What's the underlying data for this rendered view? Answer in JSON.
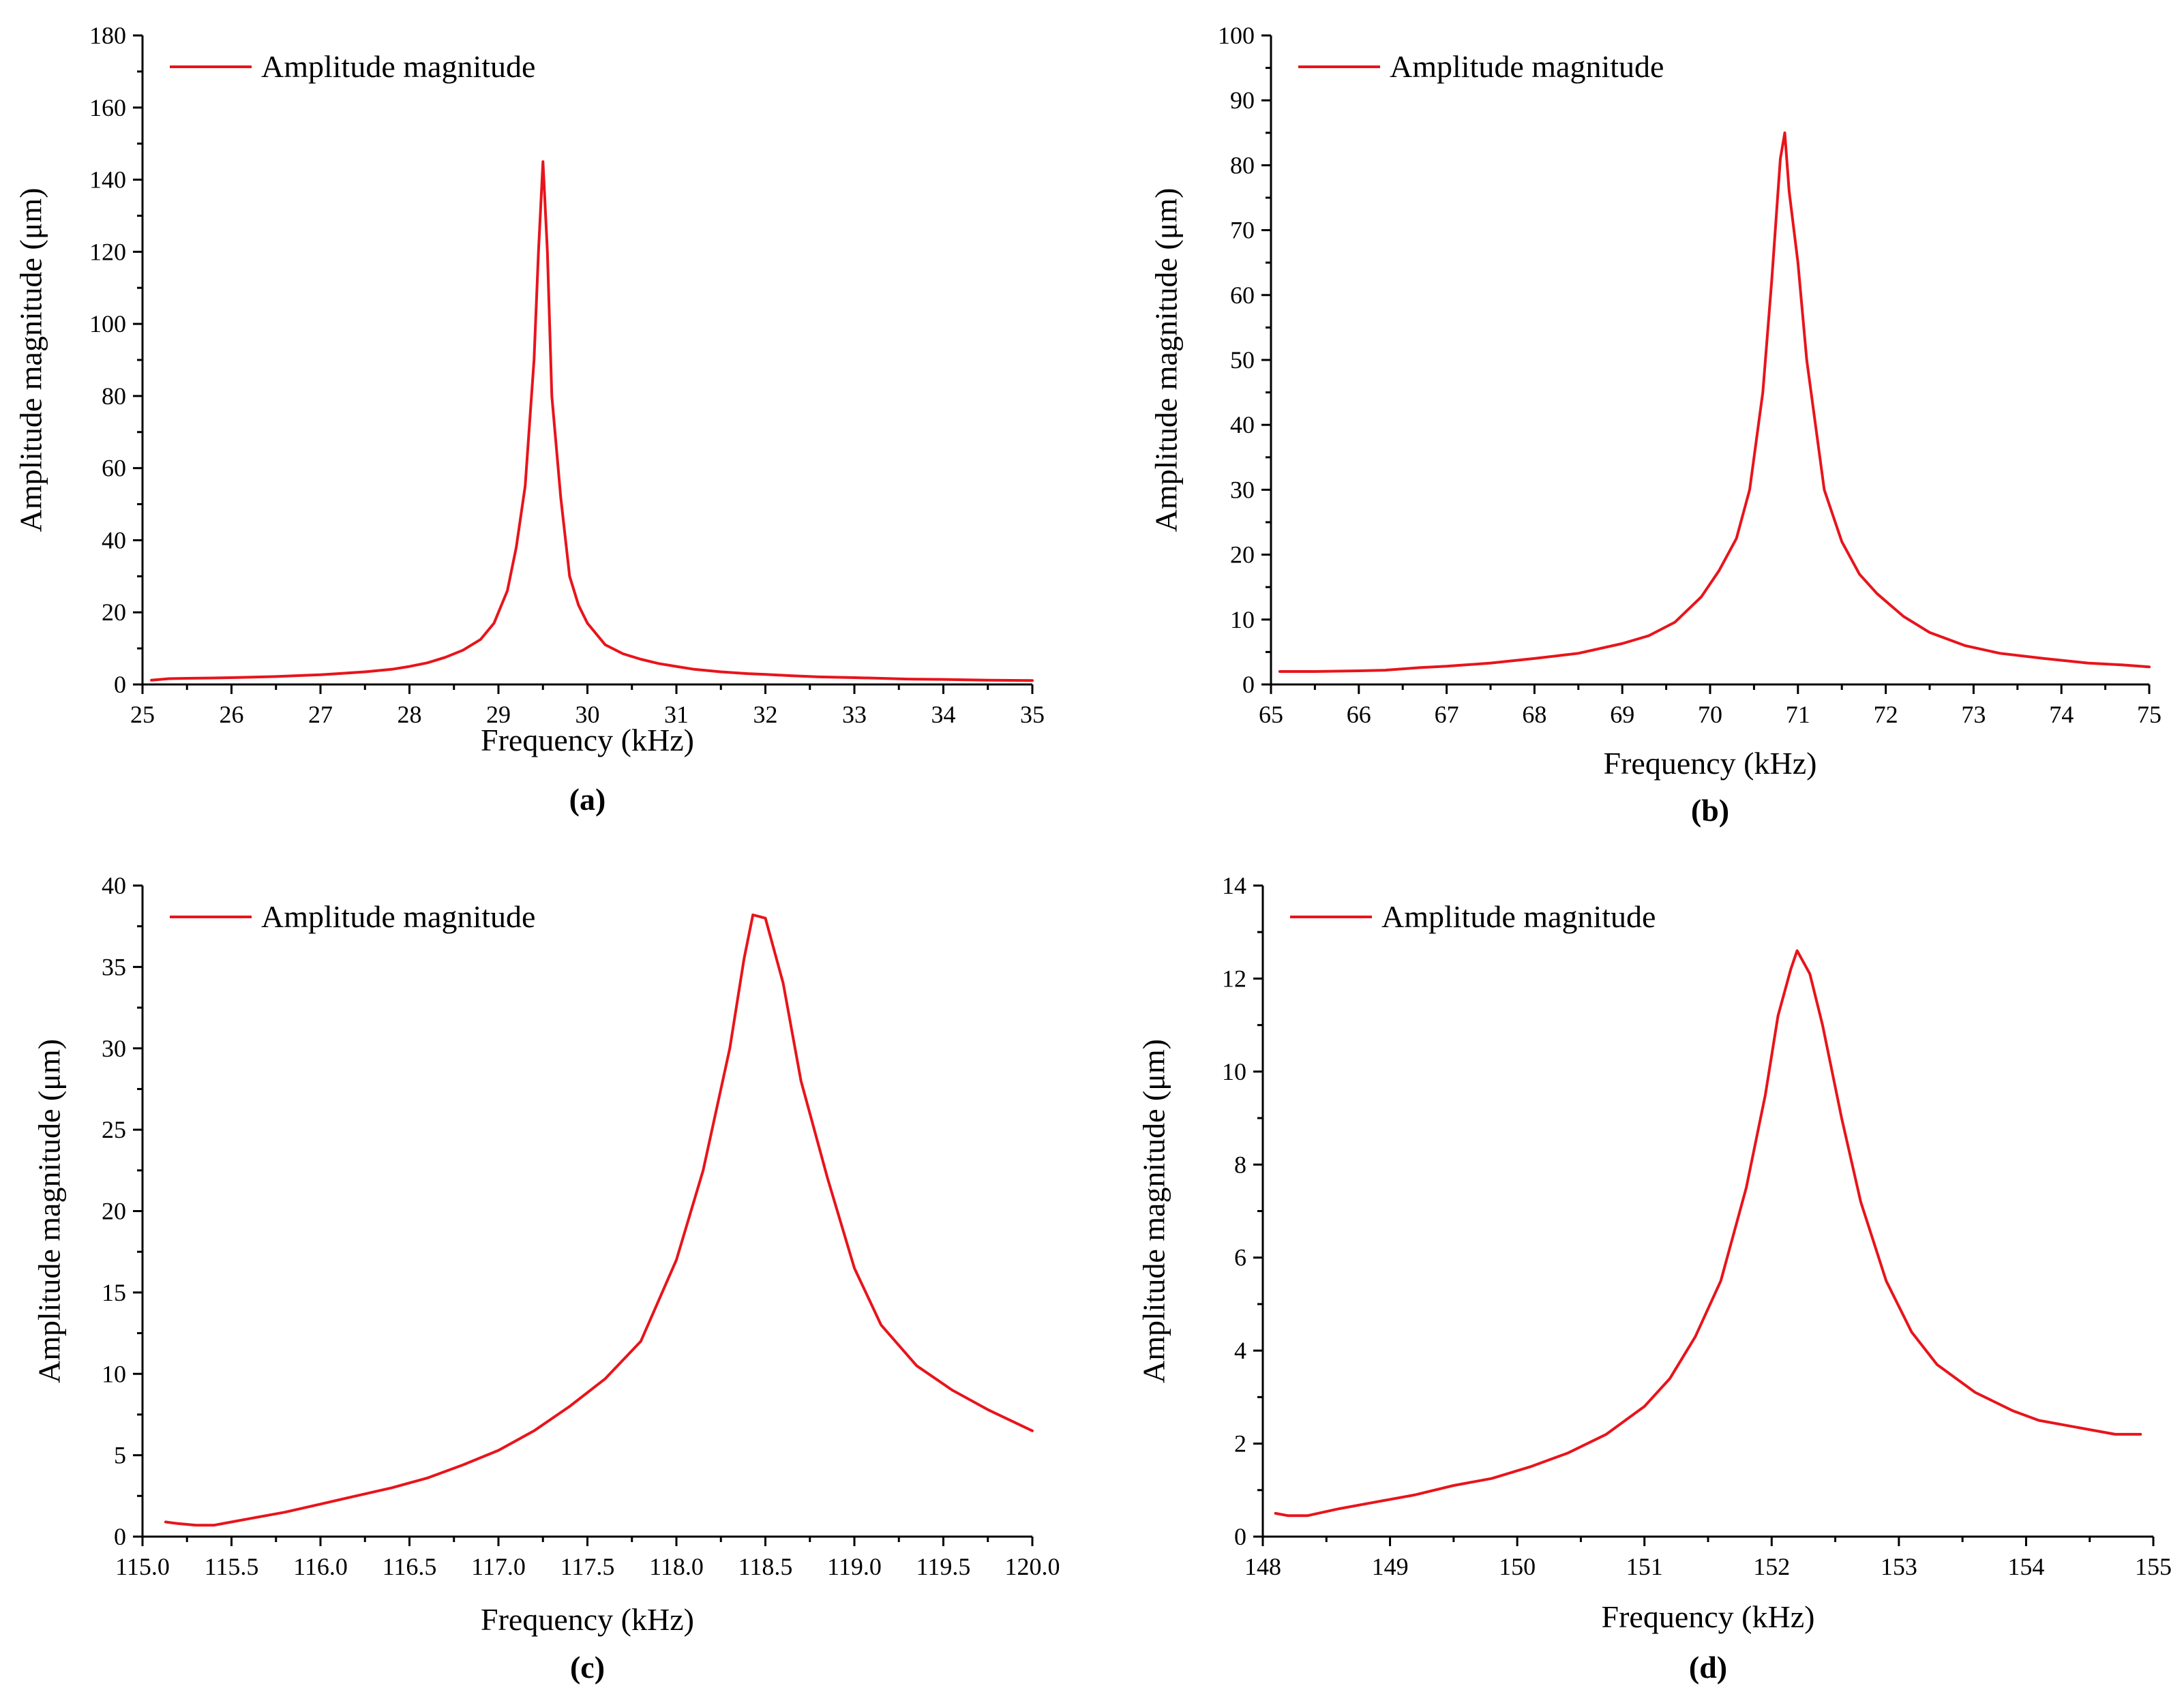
{
  "chart_data": [
    {
      "type": "line",
      "caption": "(a)",
      "xlabel": "Frequency (kHz)",
      "ylabel": "Amplitude magnitude (μm)",
      "xlim": [
        25,
        35
      ],
      "ylim": [
        0,
        180
      ],
      "xticks": [
        "25",
        "26",
        "27",
        "28",
        "29",
        "30",
        "31",
        "32",
        "33",
        "34",
        "35"
      ],
      "yticks": [
        "0",
        "20",
        "40",
        "60",
        "80",
        "100",
        "120",
        "140",
        "160",
        "180"
      ],
      "legend": {
        "position": "top-left"
      },
      "series": [
        {
          "name": "Amplitude magnitude",
          "color": "#e8141b",
          "x": [
            25.1,
            25.3,
            25.5,
            25.8,
            26.0,
            26.2,
            26.5,
            26.8,
            27.0,
            27.2,
            27.5,
            27.8,
            28.0,
            28.2,
            28.4,
            28.6,
            28.8,
            28.95,
            29.1,
            29.2,
            29.3,
            29.4,
            29.45,
            29.5,
            29.55,
            29.6,
            29.7,
            29.8,
            29.9,
            30.0,
            30.2,
            30.4,
            30.6,
            30.8,
            31.0,
            31.2,
            31.5,
            31.8,
            32.0,
            32.3,
            32.6,
            33.0,
            33.3,
            33.6,
            34.0,
            34.5,
            35.0
          ],
          "y": [
            1.2,
            1.6,
            1.7,
            1.8,
            1.9,
            2.0,
            2.2,
            2.5,
            2.7,
            3.0,
            3.5,
            4.2,
            5.0,
            6.0,
            7.5,
            9.5,
            12.5,
            17.0,
            26.0,
            38.0,
            55.0,
            90.0,
            120.0,
            145.0,
            120.0,
            80.0,
            52.0,
            30.0,
            22.0,
            17.0,
            11.0,
            8.5,
            7.0,
            5.8,
            5.0,
            4.2,
            3.5,
            3.0,
            2.8,
            2.4,
            2.1,
            1.9,
            1.7,
            1.5,
            1.4,
            1.2,
            1.1
          ]
        }
      ]
    },
    {
      "type": "line",
      "caption": "(b)",
      "xlabel": "Frequency (kHz)",
      "ylabel": "Amplitude magnitude (μm)",
      "xlim": [
        65,
        75
      ],
      "ylim": [
        0,
        100
      ],
      "xticks": [
        "65",
        "66",
        "67",
        "68",
        "69",
        "70",
        "71",
        "72",
        "73",
        "74",
        "75"
      ],
      "yticks": [
        "0",
        "10",
        "20",
        "30",
        "40",
        "50",
        "60",
        "70",
        "80",
        "90",
        "100"
      ],
      "legend": {
        "position": "top-left"
      },
      "series": [
        {
          "name": "Amplitude magnitude",
          "color": "#e8141b",
          "x": [
            65.1,
            65.5,
            66.0,
            66.3,
            66.7,
            67.0,
            67.5,
            68.0,
            68.5,
            69.0,
            69.3,
            69.6,
            69.9,
            70.1,
            70.3,
            70.45,
            70.6,
            70.7,
            70.8,
            70.85,
            70.9,
            71.0,
            71.1,
            71.3,
            71.5,
            71.7,
            71.9,
            72.2,
            72.5,
            72.9,
            73.3,
            73.8,
            74.3,
            74.7,
            75.0
          ],
          "y": [
            2.0,
            2.0,
            2.1,
            2.2,
            2.6,
            2.8,
            3.3,
            4.0,
            4.8,
            6.3,
            7.5,
            9.6,
            13.5,
            17.5,
            22.5,
            30.0,
            45.0,
            62.0,
            81.0,
            85.0,
            76.0,
            65.0,
            50.0,
            30.0,
            22.0,
            17.0,
            14.0,
            10.5,
            8.0,
            6.0,
            4.8,
            4.0,
            3.3,
            3.0,
            2.7
          ]
        }
      ]
    },
    {
      "type": "line",
      "caption": "(c)",
      "xlabel": "Frequency (kHz)",
      "ylabel": "Amplitude magnitude (μm)",
      "xlim": [
        115.0,
        120.0
      ],
      "ylim": [
        0,
        40
      ],
      "xticks": [
        "115.0",
        "115.5",
        "116.0",
        "116.5",
        "117.0",
        "117.5",
        "118.0",
        "118.5",
        "119.0",
        "119.5",
        "120.0"
      ],
      "yticks": [
        "0",
        "5",
        "10",
        "15",
        "20",
        "25",
        "30",
        "35",
        "40"
      ],
      "legend": {
        "position": "top-left"
      },
      "series": [
        {
          "name": "Amplitude magnitude",
          "color": "#e8141b",
          "x": [
            115.13,
            115.2,
            115.3,
            115.4,
            115.5,
            115.6,
            115.8,
            116.0,
            116.2,
            116.4,
            116.6,
            116.8,
            117.0,
            117.2,
            117.4,
            117.6,
            117.8,
            118.0,
            118.15,
            118.3,
            118.38,
            118.43,
            118.5,
            118.6,
            118.7,
            118.85,
            119.0,
            119.15,
            119.35,
            119.55,
            119.75,
            120.0
          ],
          "y": [
            0.9,
            0.8,
            0.7,
            0.7,
            0.9,
            1.1,
            1.5,
            2.0,
            2.5,
            3.0,
            3.6,
            4.4,
            5.3,
            6.5,
            8.0,
            9.7,
            12.0,
            17.0,
            22.5,
            30.0,
            35.5,
            38.2,
            38.0,
            34.0,
            28.0,
            22.0,
            16.5,
            13.0,
            10.5,
            9.0,
            7.8,
            6.5
          ]
        }
      ]
    },
    {
      "type": "line",
      "caption": "(d)",
      "xlabel": "Frequency (kHz)",
      "ylabel": "Amplitude magnitude (μm)",
      "xlim": [
        148,
        155
      ],
      "ylim": [
        0,
        14
      ],
      "xticks": [
        "148",
        "149",
        "150",
        "151",
        "152",
        "153",
        "154",
        "155"
      ],
      "yticks": [
        "0",
        "2",
        "4",
        "6",
        "8",
        "10",
        "12",
        "14"
      ],
      "legend": {
        "position": "top-left"
      },
      "series": [
        {
          "name": "Amplitude magnitude",
          "color": "#e8141b",
          "x": [
            148.1,
            148.2,
            148.35,
            148.6,
            148.9,
            149.2,
            149.5,
            149.8,
            150.1,
            150.4,
            150.7,
            151.0,
            151.2,
            151.4,
            151.6,
            151.8,
            151.95,
            152.05,
            152.15,
            152.2,
            152.3,
            152.4,
            152.55,
            152.7,
            152.9,
            153.1,
            153.3,
            153.6,
            153.9,
            154.1,
            154.3,
            154.5,
            154.7,
            154.9
          ],
          "y": [
            0.5,
            0.45,
            0.45,
            0.6,
            0.75,
            0.9,
            1.1,
            1.25,
            1.5,
            1.8,
            2.2,
            2.8,
            3.4,
            4.3,
            5.5,
            7.5,
            9.5,
            11.2,
            12.2,
            12.6,
            12.1,
            11.0,
            9.0,
            7.2,
            5.5,
            4.4,
            3.7,
            3.1,
            2.7,
            2.5,
            2.4,
            2.3,
            2.2,
            2.2
          ]
        }
      ]
    }
  ]
}
